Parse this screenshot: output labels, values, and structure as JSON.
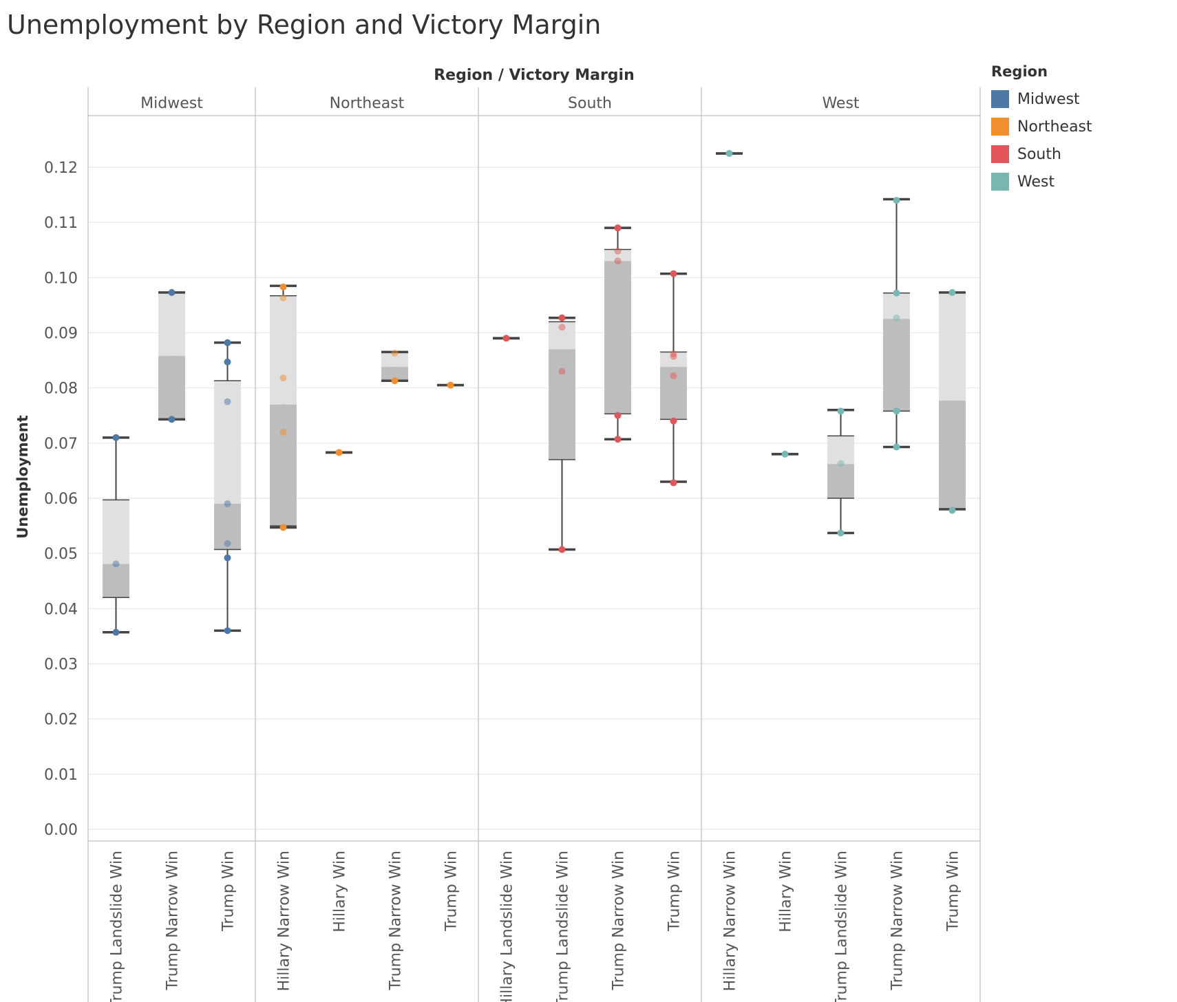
{
  "title": "Unemployment by Region and Victory Margin",
  "chart_data": {
    "type": "boxplot",
    "title": "Unemployment by Region and Victory Margin",
    "column_header": "Region  /  Victory Margin",
    "ylabel": "Unemployment",
    "ylim": [
      0,
      0.13
    ],
    "yticks": [
      "0.00",
      "0.01",
      "0.02",
      "0.03",
      "0.04",
      "0.05",
      "0.06",
      "0.07",
      "0.08",
      "0.09",
      "0.10",
      "0.11",
      "0.12"
    ],
    "grid": true,
    "legend": {
      "title": "Region",
      "placement": "right",
      "items": [
        {
          "name": "Midwest",
          "color": "#4e79a7"
        },
        {
          "name": "Northeast",
          "color": "#f28e2b"
        },
        {
          "name": "South",
          "color": "#e15759"
        },
        {
          "name": "West",
          "color": "#76b7b2"
        }
      ]
    },
    "panels": [
      {
        "region": "Midwest",
        "color": "#4e79a7",
        "groups": [
          {
            "label": "Trump Landslide Win",
            "whisker_low": 0.0357,
            "q1": 0.042,
            "median": 0.0481,
            "q3": 0.0597,
            "whisker_high": 0.071,
            "points": [
              0.0357,
              0.0481,
              0.071
            ]
          },
          {
            "label": "Trump Narrow Win",
            "whisker_low": 0.0743,
            "q1": 0.0743,
            "median": 0.0858,
            "q3": 0.0973,
            "whisker_high": 0.0973,
            "points": [
              0.0743,
              0.0973
            ]
          },
          {
            "label": "Trump Win",
            "whisker_low": 0.036,
            "q1": 0.0507,
            "median": 0.059,
            "q3": 0.0813,
            "whisker_high": 0.0882,
            "points": [
              0.036,
              0.0492,
              0.0518,
              0.059,
              0.0775,
              0.0847,
              0.0882
            ]
          }
        ]
      },
      {
        "region": "Northeast",
        "color": "#f28e2b",
        "groups": [
          {
            "label": "Hillary Narrow Win",
            "whisker_low": 0.0547,
            "q1": 0.055,
            "median": 0.077,
            "q3": 0.0967,
            "whisker_high": 0.0985,
            "points": [
              0.0547,
              0.072,
              0.0818,
              0.0963,
              0.0983
            ]
          },
          {
            "label": "Hillary Win",
            "whisker_low": 0.0683,
            "q1": 0.0683,
            "median": 0.0683,
            "q3": 0.0683,
            "whisker_high": 0.0683,
            "points": [
              0.0683
            ]
          },
          {
            "label": "Trump Narrow Win",
            "whisker_low": 0.0813,
            "q1": 0.0813,
            "median": 0.0838,
            "q3": 0.0865,
            "whisker_high": 0.0865,
            "points": [
              0.0813,
              0.0863
            ]
          },
          {
            "label": "Trump Win",
            "whisker_low": 0.0805,
            "q1": 0.0805,
            "median": 0.0805,
            "q3": 0.0805,
            "whisker_high": 0.0805,
            "points": [
              0.0805
            ]
          }
        ]
      },
      {
        "region": "South",
        "color": "#e15759",
        "groups": [
          {
            "label": "Hillary Landslide Win",
            "whisker_low": 0.089,
            "q1": 0.089,
            "median": 0.089,
            "q3": 0.089,
            "whisker_high": 0.089,
            "points": [
              0.089
            ]
          },
          {
            "label": "Trump Landslide Win",
            "whisker_low": 0.0507,
            "q1": 0.067,
            "median": 0.087,
            "q3": 0.092,
            "whisker_high": 0.0927,
            "points": [
              0.0507,
              0.083,
              0.091,
              0.0927
            ]
          },
          {
            "label": "Trump Narrow Win",
            "whisker_low": 0.0707,
            "q1": 0.0753,
            "median": 0.103,
            "q3": 0.1051,
            "whisker_high": 0.109,
            "points": [
              0.0707,
              0.075,
              0.103,
              0.1048,
              0.109
            ]
          },
          {
            "label": "Trump Win",
            "whisker_low": 0.063,
            "q1": 0.0743,
            "median": 0.0838,
            "q3": 0.0865,
            "whisker_high": 0.1007,
            "points": [
              0.0628,
              0.074,
              0.0822,
              0.0857,
              0.0862,
              0.1007
            ]
          }
        ]
      },
      {
        "region": "West",
        "color": "#76b7b2",
        "groups": [
          {
            "label": "Hillary Narrow Win",
            "whisker_low": 0.1225,
            "q1": 0.1225,
            "median": 0.1225,
            "q3": 0.1225,
            "whisker_high": 0.1225,
            "points": [
              0.1225
            ]
          },
          {
            "label": "Hillary Win",
            "whisker_low": 0.068,
            "q1": 0.068,
            "median": 0.068,
            "q3": 0.068,
            "whisker_high": 0.068,
            "points": [
              0.068
            ]
          },
          {
            "label": "Trump Landslide Win",
            "whisker_low": 0.0537,
            "q1": 0.06,
            "median": 0.0662,
            "q3": 0.0713,
            "whisker_high": 0.076,
            "points": [
              0.0537,
              0.0663,
              0.0758
            ]
          },
          {
            "label": "Trump Narrow Win",
            "whisker_low": 0.0693,
            "q1": 0.0758,
            "median": 0.0925,
            "q3": 0.0972,
            "whisker_high": 0.1142,
            "points": [
              0.0693,
              0.0758,
              0.0927,
              0.0972,
              0.114
            ]
          },
          {
            "label": "Trump Win",
            "whisker_low": 0.058,
            "q1": 0.058,
            "median": 0.0777,
            "q3": 0.0973,
            "whisker_high": 0.0973,
            "points": [
              0.0578,
              0.0973
            ]
          }
        ]
      }
    ]
  }
}
